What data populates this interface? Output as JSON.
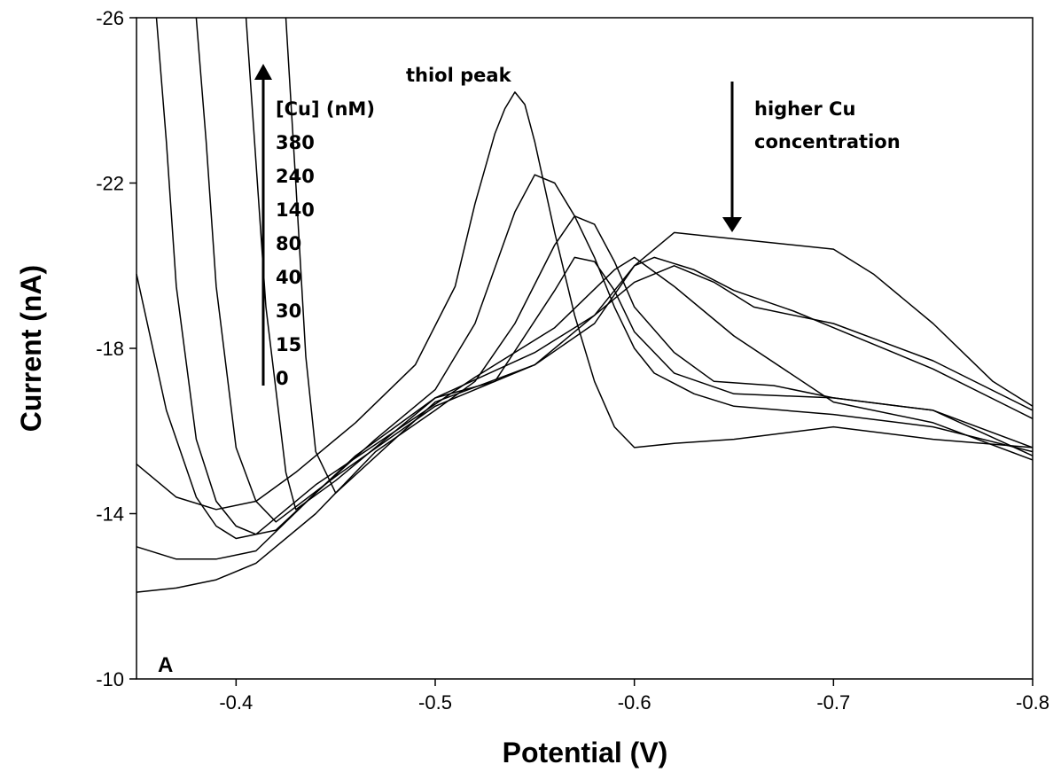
{
  "chart_data": {
    "type": "line",
    "title": "",
    "xlabel": "Potential (V)",
    "ylabel": "Current (nA)",
    "xlim": [
      -0.35,
      -0.8
    ],
    "ylim": [
      -10,
      -26
    ],
    "x_reversed": true,
    "y_reversed": true,
    "x_ticks": [
      -0.4,
      -0.5,
      -0.6,
      -0.7,
      -0.8
    ],
    "y_ticks": [
      -10,
      -14,
      -18,
      -22,
      -26
    ],
    "y_tick_labels_extra": [],
    "grid": false,
    "panel_label": "A",
    "annotations": {
      "left_arrow_header": "[Cu] (nM)",
      "concentrations": [
        "380",
        "240",
        "140",
        "80",
        "40",
        "30",
        "15",
        "0"
      ],
      "peak_label": "thiol peak",
      "right_arrow_text_1": "higher Cu",
      "right_arrow_text_2": "concentration"
    },
    "series": [
      {
        "x": [
          -0.35,
          -0.37,
          -0.39,
          -0.41,
          -0.43,
          -0.46,
          -0.49,
          -0.51,
          -0.52,
          -0.53,
          -0.535,
          -0.54,
          -0.545,
          -0.55,
          -0.56,
          -0.57,
          -0.58,
          -0.59,
          -0.6,
          -0.62,
          -0.65,
          -0.7,
          -0.75,
          -0.8
        ],
        "y": [
          -15.2,
          -14.4,
          -14.1,
          -14.3,
          -15.0,
          -16.2,
          -17.6,
          -19.5,
          -21.5,
          -23.2,
          -23.8,
          -24.2,
          -23.9,
          -23.0,
          -20.8,
          -18.8,
          -17.2,
          -16.1,
          -15.6,
          -15.7,
          -15.8,
          -16.1,
          -15.8,
          -15.6
        ]
      },
      {
        "x": [
          -0.35,
          -0.37,
          -0.39,
          -0.41,
          -0.44,
          -0.47,
          -0.5,
          -0.52,
          -0.54,
          -0.55,
          -0.56,
          -0.57,
          -0.58,
          -0.59,
          -0.6,
          -0.61,
          -0.63,
          -0.65,
          -0.7,
          -0.75,
          -0.8
        ],
        "y": [
          -13.2,
          -12.9,
          -12.9,
          -13.1,
          -14.5,
          -15.8,
          -17.0,
          -18.6,
          -21.3,
          -22.2,
          -22.0,
          -21.2,
          -20.2,
          -19.0,
          -18.0,
          -17.4,
          -16.9,
          -16.6,
          -16.4,
          -16.1,
          -15.5
        ]
      },
      {
        "x": [
          -0.35,
          -0.37,
          -0.39,
          -0.41,
          -0.44,
          -0.47,
          -0.5,
          -0.52,
          -0.54,
          -0.56,
          -0.57,
          -0.58,
          -0.59,
          -0.6,
          -0.62,
          -0.64,
          -0.67,
          -0.7,
          -0.75,
          -0.8
        ],
        "y": [
          -12.1,
          -12.2,
          -12.4,
          -12.8,
          -14.0,
          -15.5,
          -16.5,
          -17.2,
          -18.6,
          -20.5,
          -21.2,
          -21.0,
          -20.1,
          -19.0,
          -17.9,
          -17.2,
          -17.1,
          -16.8,
          -16.5,
          -15.4
        ]
      },
      {
        "x": [
          -0.35,
          -0.365,
          -0.38,
          -0.39,
          -0.4,
          -0.42,
          -0.46,
          -0.5,
          -0.53,
          -0.56,
          -0.57,
          -0.58,
          -0.59,
          -0.6,
          -0.62,
          -0.65,
          -0.7,
          -0.75,
          -0.8
        ],
        "y": [
          -19.8,
          -16.5,
          -14.4,
          -13.7,
          -13.4,
          -13.6,
          -15.4,
          -16.8,
          -17.2,
          -19.4,
          -20.2,
          -20.1,
          -19.4,
          -18.4,
          -17.4,
          -16.9,
          -16.8,
          -16.5,
          -15.6
        ]
      },
      {
        "x": [
          -0.36,
          -0.365,
          -0.37,
          -0.38,
          -0.39,
          -0.4,
          -0.41,
          -0.44,
          -0.48,
          -0.52,
          -0.56,
          -0.59,
          -0.6,
          -0.62,
          -0.65,
          -0.7,
          -0.75,
          -0.8
        ],
        "y": [
          -26.0,
          -23.0,
          -19.5,
          -15.8,
          -14.3,
          -13.7,
          -13.5,
          -14.7,
          -16.0,
          -17.3,
          -18.5,
          -19.9,
          -20.2,
          -19.5,
          -18.3,
          -16.7,
          -16.2,
          -15.3
        ]
      },
      {
        "x": [
          -0.38,
          -0.385,
          -0.39,
          -0.4,
          -0.41,
          -0.42,
          -0.45,
          -0.5,
          -0.55,
          -0.58,
          -0.6,
          -0.61,
          -0.63,
          -0.65,
          -0.68,
          -0.7,
          -0.75,
          -0.8
        ],
        "y": [
          -26.0,
          -23.0,
          -19.5,
          -15.6,
          -14.3,
          -13.8,
          -14.9,
          -16.6,
          -17.6,
          -18.6,
          -20.0,
          -20.2,
          -19.9,
          -19.4,
          -18.9,
          -18.5,
          -17.5,
          -16.3
        ]
      },
      {
        "x": [
          -0.405,
          -0.41,
          -0.415,
          -0.425,
          -0.43,
          -0.45,
          -0.5,
          -0.55,
          -0.58,
          -0.6,
          -0.62,
          -0.64,
          -0.66,
          -0.7,
          -0.75,
          -0.8
        ],
        "y": [
          -26.0,
          -22.5,
          -19.0,
          -15.0,
          -14.1,
          -14.8,
          -16.8,
          -17.9,
          -18.8,
          -19.6,
          -20.0,
          -19.6,
          -19.0,
          -18.6,
          -17.7,
          -16.5
        ]
      },
      {
        "x": [
          -0.425,
          -0.43,
          -0.435,
          -0.44,
          -0.45,
          -0.5,
          -0.55,
          -0.58,
          -0.6,
          -0.62,
          -0.64,
          -0.66,
          -0.7,
          -0.72,
          -0.75,
          -0.78,
          -0.8
        ],
        "y": [
          -26.0,
          -22.0,
          -17.8,
          -15.5,
          -14.5,
          -16.7,
          -17.6,
          -18.8,
          -20.0,
          -20.8,
          -20.7,
          -20.6,
          -20.4,
          -19.8,
          -18.6,
          -17.2,
          -16.6
        ]
      }
    ]
  }
}
